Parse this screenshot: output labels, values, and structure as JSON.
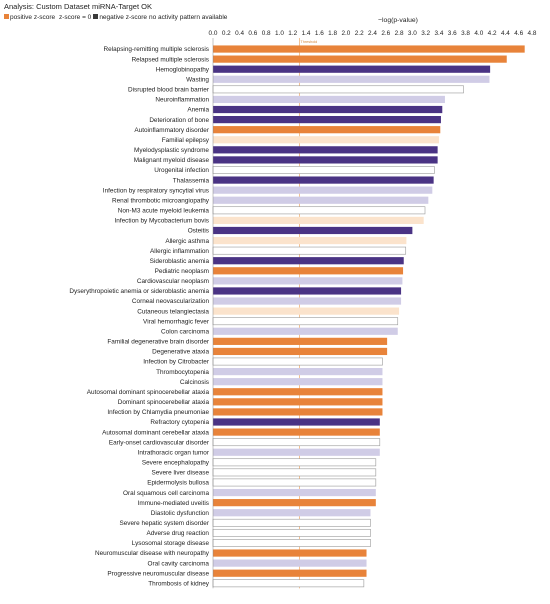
{
  "analysis_title": "Analysis: Custom Dataset miRNA-Target OK",
  "legend": {
    "positive_label": "positive z-score",
    "zero_label": "z-score = 0",
    "negative_label": "negative z-score",
    "no_pattern_label": "no activity pattern available"
  },
  "colors": {
    "positive_strong": "#e8833a",
    "positive_light": "#fbe3cc",
    "negative_strong": "#4a3384",
    "negative_light": "#d0cce6",
    "no_pattern": "#ffffff",
    "threshold": "#f0b37a",
    "outline": "#9a9a9a"
  },
  "chart_data": {
    "type": "bar",
    "orientation": "horizontal",
    "xlabel": "−log(p-value)",
    "threshold_label": "Threshold",
    "threshold": 1.3,
    "xlim": [
      0,
      4.8
    ],
    "xticks": [
      "0.0",
      "0.2",
      "0.4",
      "0.6",
      "0.8",
      "1.0",
      "1.2",
      "1.4",
      "1.6",
      "1.8",
      "2.0",
      "2.2",
      "2.4",
      "2.6",
      "2.8",
      "3.0",
      "3.2",
      "3.4",
      "3.6",
      "3.8",
      "4.0",
      "4.2",
      "4.4",
      "4.6",
      "4.8"
    ],
    "grid": false,
    "categories": [
      "Relapsing-remitting multiple sclerosis",
      "Relapsed multiple sclerosis",
      "Hemoglobinopathy",
      "Wasting",
      "Disrupted blood brain barrier",
      "Neuroinflammation",
      "Anemia",
      "Deterioration of bone",
      "Autoinflammatory disorder",
      "Familial epilepsy",
      "Myelodysplastic syndrome",
      "Malignant myeloid disease",
      "Urogenital infection",
      "Thalassemia",
      "Infection by respiratory syncytial virus",
      "Renal thrombotic microangiopathy",
      "Non-M3 acute myeloid leukemia",
      "Infection by Mycobacterium bovis",
      "Osteitis",
      "Allergic asthma",
      "Allergic inflammation",
      "Sideroblastic anemia",
      "Pediatric neoplasm",
      "Cardiovascular neoplasm",
      "Dyserythropoietic anemia or sideroblastic anemia",
      "Corneal neovascularization",
      "Cutaneous telangiectasia",
      "Viral hemorrhagic fever",
      "Colon carcinoma",
      "Familial degenerative brain disorder",
      "Degenerative ataxia",
      "Infection by Citrobacter",
      "Thrombocytopenia",
      "Calcinosis",
      "Autosomal dominant spinocerebellar ataxia",
      "Dominant spinocerebellar ataxia",
      "Infection by Chlamydia pneumoniae",
      "Refractory cytopenia",
      "Autosomal dominant cerebellar ataxia",
      "Early-onset cardiovascular disorder",
      "Intrathoracic organ tumor",
      "Severe encephalopathy",
      "Severe liver disease",
      "Epidermolysis bullosa",
      "Oral squamous cell carcinoma",
      "Immune-mediated uveitis",
      "Diastolic dysfunction",
      "Severe hepatic system disorder",
      "Adverse drug reaction",
      "Lysosomal storage disease",
      "Neuromuscular disease with neuropathy",
      "Oral cavity carcinoma",
      "Progressive neuromuscular disease",
      "Thrombosis of kidney"
    ],
    "values": [
      4.69,
      4.42,
      4.17,
      4.16,
      3.77,
      3.49,
      3.45,
      3.43,
      3.42,
      3.4,
      3.38,
      3.38,
      3.33,
      3.32,
      3.3,
      3.24,
      3.19,
      3.17,
      3.0,
      2.91,
      2.9,
      2.87,
      2.86,
      2.85,
      2.83,
      2.83,
      2.8,
      2.78,
      2.78,
      2.62,
      2.62,
      2.55,
      2.55,
      2.55,
      2.55,
      2.55,
      2.55,
      2.51,
      2.51,
      2.51,
      2.51,
      2.45,
      2.45,
      2.45,
      2.45,
      2.45,
      2.37,
      2.37,
      2.37,
      2.37,
      2.31,
      2.31,
      2.31,
      2.27
    ],
    "zscore_category": [
      "positive_strong",
      "positive_strong",
      "negative_strong",
      "negative_light",
      "no_pattern",
      "negative_light",
      "negative_strong",
      "negative_strong",
      "positive_strong",
      "positive_light",
      "negative_strong",
      "negative_strong",
      "no_pattern",
      "negative_strong",
      "negative_light",
      "negative_light",
      "no_pattern",
      "positive_light",
      "negative_strong",
      "positive_light",
      "no_pattern",
      "negative_strong",
      "positive_strong",
      "negative_light",
      "negative_strong",
      "negative_light",
      "positive_light",
      "no_pattern",
      "negative_light",
      "positive_strong",
      "positive_strong",
      "no_pattern",
      "negative_light",
      "negative_light",
      "positive_strong",
      "positive_strong",
      "positive_strong",
      "negative_strong",
      "positive_strong",
      "no_pattern",
      "negative_light",
      "no_pattern",
      "no_pattern",
      "no_pattern",
      "negative_light",
      "positive_strong",
      "negative_light",
      "no_pattern",
      "no_pattern",
      "no_pattern",
      "positive_strong",
      "negative_light",
      "positive_strong",
      "no_pattern"
    ]
  }
}
